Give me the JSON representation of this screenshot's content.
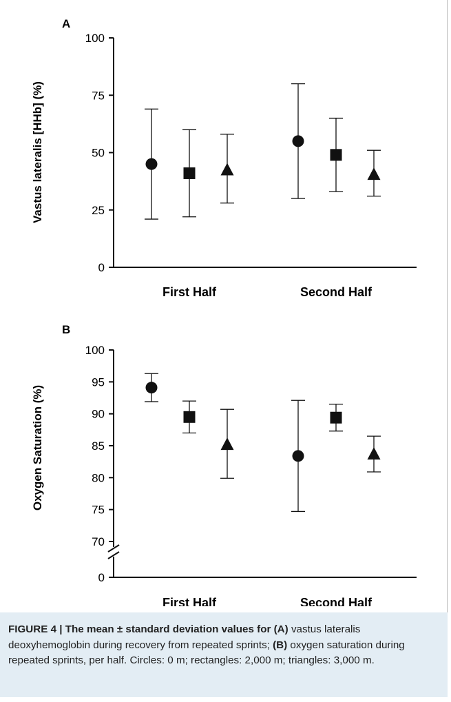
{
  "chart_data": [
    {
      "type": "scatter",
      "panel_label": "A",
      "ylabel": "Vastus lateralis [HHb] (%)",
      "ylim": [
        0,
        100
      ],
      "yticks": [
        "0",
        "25",
        "50",
        "75",
        "100"
      ],
      "categories": [
        "First Half",
        "Second Half"
      ],
      "axis_break": false,
      "series": [
        {
          "marker": "circle",
          "mean": [
            45,
            55
          ],
          "lower": [
            21,
            30
          ],
          "upper": [
            69,
            80
          ]
        },
        {
          "marker": "square",
          "mean": [
            41,
            49
          ],
          "lower": [
            22,
            33
          ],
          "upper": [
            60,
            65
          ]
        },
        {
          "marker": "triangle",
          "mean": [
            42.5,
            40.5
          ],
          "lower": [
            28,
            31
          ],
          "upper": [
            58,
            51
          ]
        }
      ]
    },
    {
      "type": "scatter",
      "panel_label": "B",
      "ylabel": "Oxygen Saturation (%)",
      "ylim": [
        70,
        100
      ],
      "yticks": [
        "70",
        "75",
        "80",
        "85",
        "90",
        "95",
        "100"
      ],
      "zero_label": "0",
      "categories": [
        "First Half",
        "Second Half"
      ],
      "axis_break": true,
      "series": [
        {
          "marker": "circle",
          "mean": [
            94.1,
            83.4
          ],
          "lower": [
            91.9,
            74.7
          ],
          "upper": [
            96.3,
            92.1
          ]
        },
        {
          "marker": "square",
          "mean": [
            89.5,
            89.4
          ],
          "lower": [
            87.0,
            87.3
          ],
          "upper": [
            92.0,
            91.5
          ]
        },
        {
          "marker": "triangle",
          "mean": [
            85.2,
            83.7
          ],
          "lower": [
            79.9,
            80.9
          ],
          "upper": [
            90.7,
            86.5
          ]
        }
      ]
    }
  ],
  "caption": {
    "lead": "FIGURE 4 | The mean ± standard deviation values for ",
    "label_a": "(A)",
    "text_a": " vastus lateralis deoxyhemoglobin during recovery from repeated sprints; ",
    "label_b": "(B)",
    "text_b": " oxygen saturation during repeated sprints, per half. Circles: 0 m; rectangles: 2,000 m; triangles: 3,000 m."
  }
}
